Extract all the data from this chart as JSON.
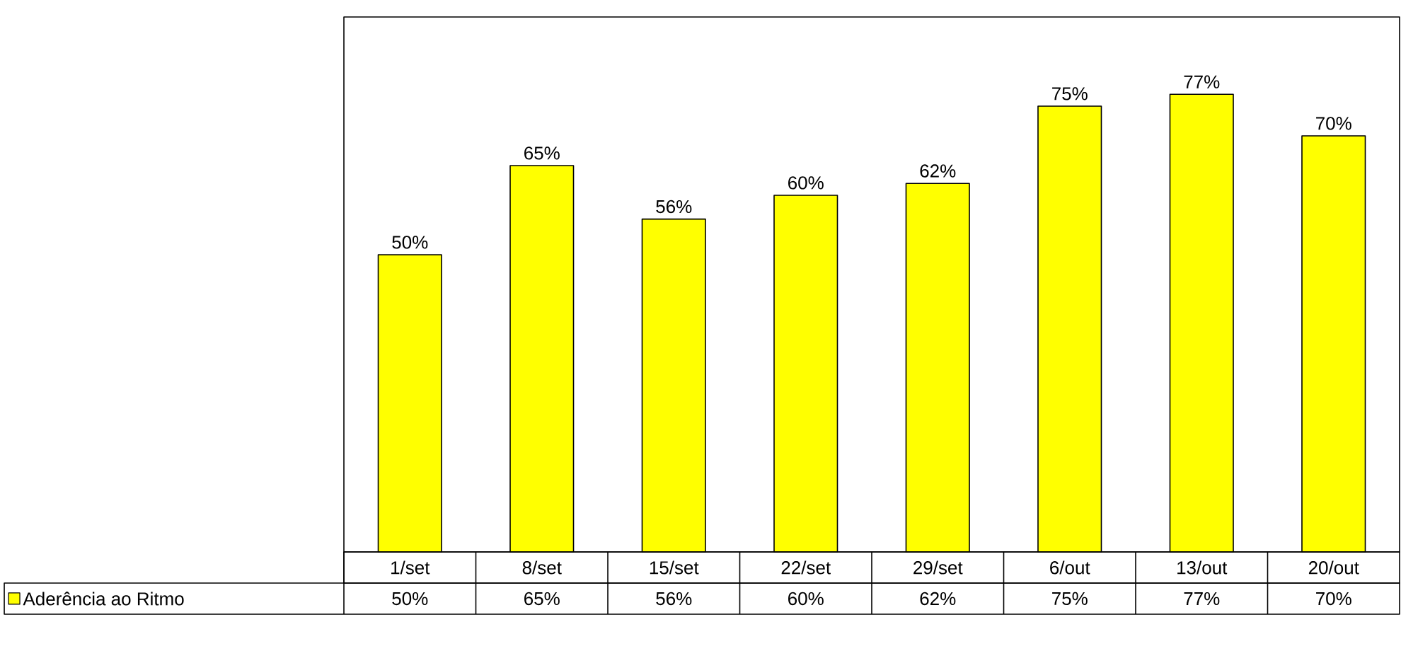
{
  "chart_data": {
    "type": "bar",
    "categories": [
      "1/set",
      "8/set",
      "15/set",
      "22/set",
      "29/set",
      "6/out",
      "13/out",
      "20/out"
    ],
    "series": [
      {
        "name": "Aderência ao Ritmo",
        "color": "#ffff00",
        "values": [
          50,
          65,
          56,
          60,
          62,
          75,
          77,
          70
        ],
        "value_labels": [
          "50%",
          "65%",
          "56%",
          "60%",
          "62%",
          "75%",
          "77%",
          "70%"
        ]
      }
    ],
    "ylim": [
      0,
      90
    ],
    "legend": "bottom left"
  }
}
